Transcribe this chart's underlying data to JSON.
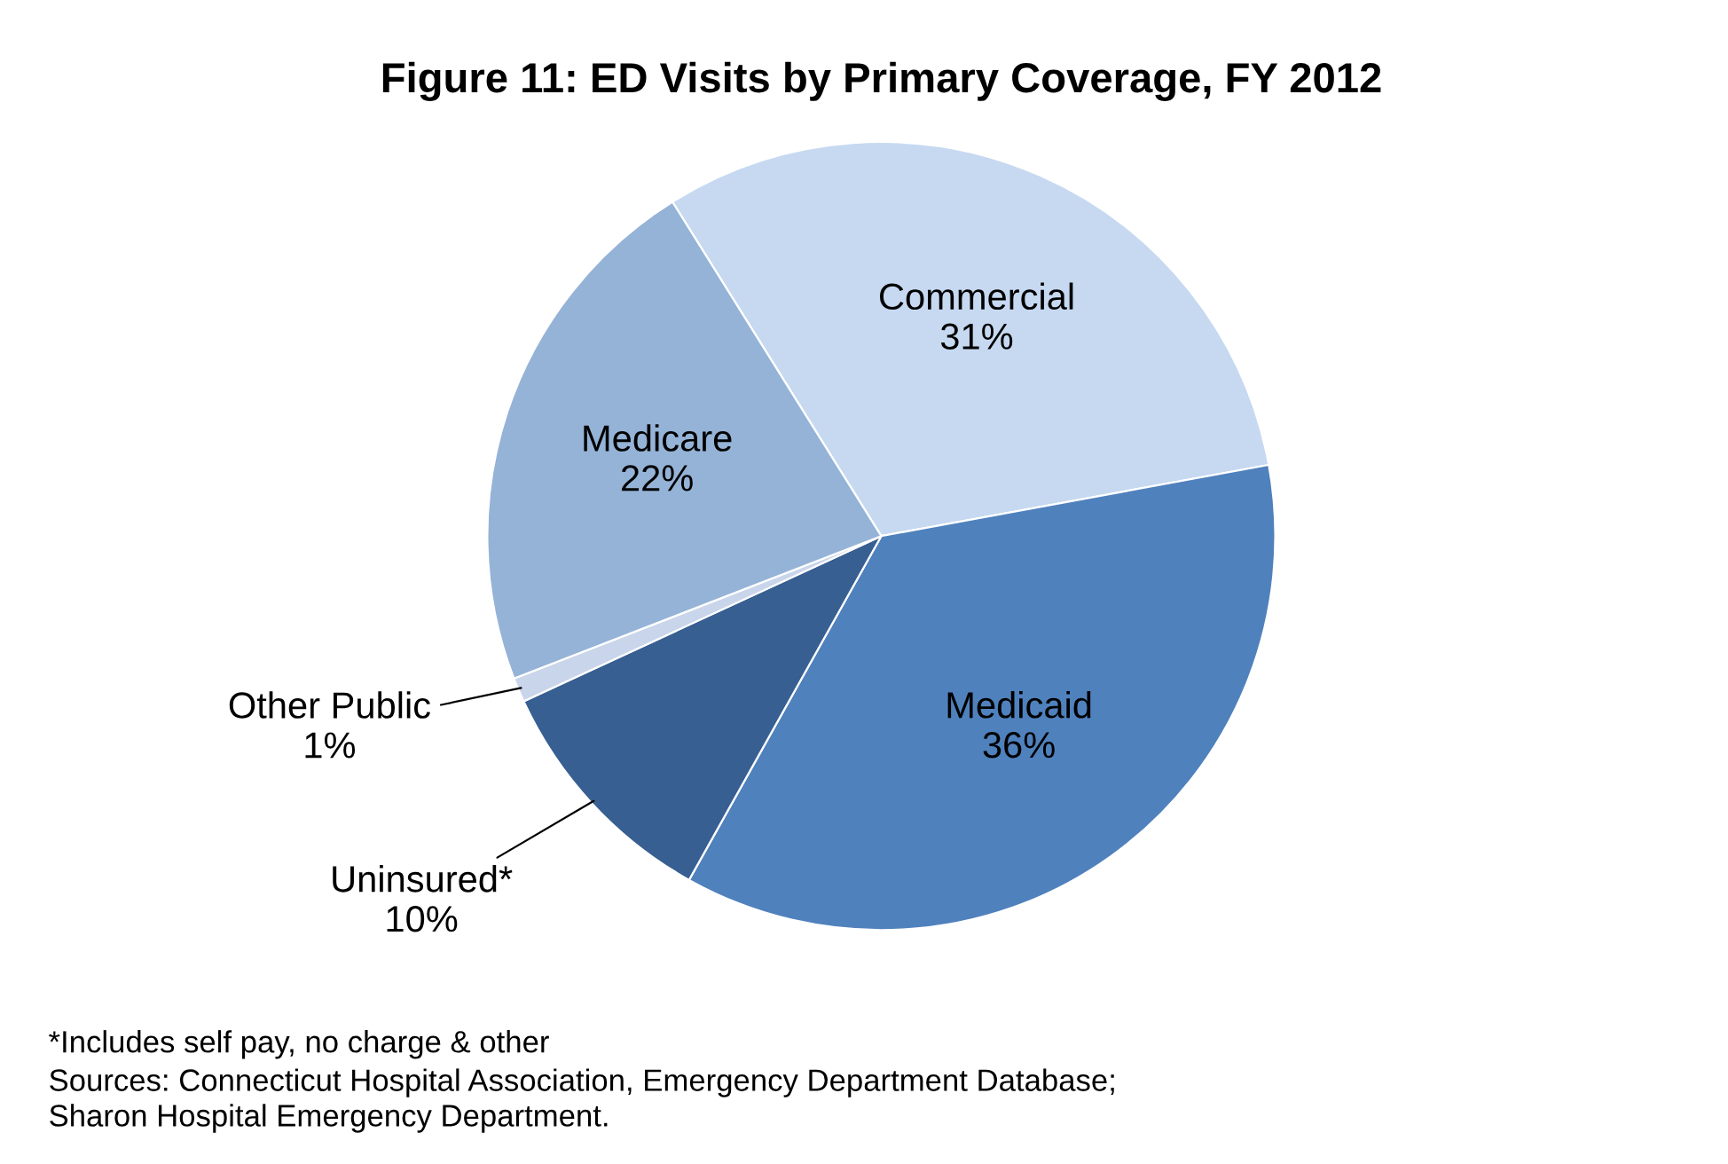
{
  "chart_data": {
    "type": "pie",
    "title": "Figure 11: ED Visits by Primary Coverage, FY 2012",
    "categories": [
      "Commercial",
      "Medicaid",
      "Uninsured*",
      "Other Public",
      "Medicare"
    ],
    "values": [
      31,
      36,
      10,
      1,
      22
    ],
    "value_labels": [
      "31%",
      "36%",
      "10%",
      "1%",
      "22%"
    ],
    "colors": [
      "#c6d9f1",
      "#4f81bd",
      "#375f92",
      "#c9d5ea",
      "#95b3d7"
    ],
    "annotations": [
      "*Includes self pay, no charge & other",
      "Sources: Connecticut Hospital Association, Emergency Department Database;\nSharon Hospital Emergency Department."
    ]
  }
}
